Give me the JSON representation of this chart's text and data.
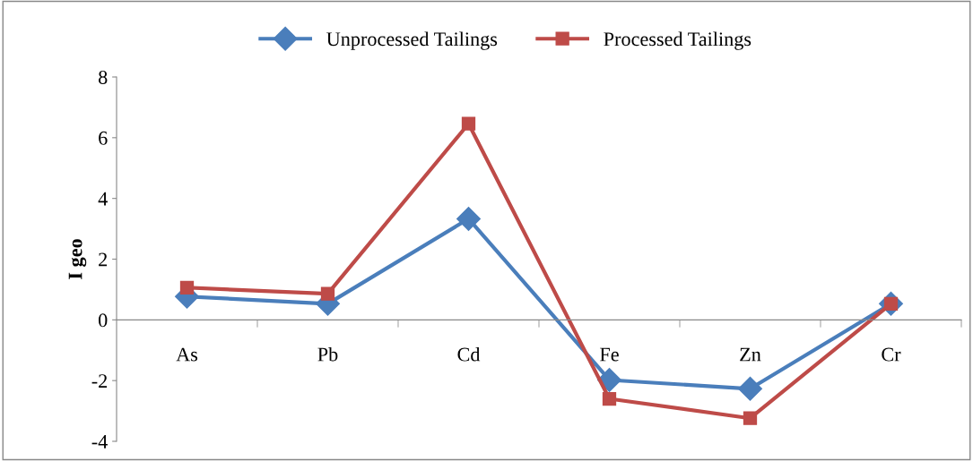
{
  "chart_data": {
    "type": "line",
    "ylabel": "I geo",
    "categories": [
      "As",
      "Pb",
      "Cd",
      "Fe",
      "Zn",
      "Cr"
    ],
    "series": [
      {
        "name": "Unprocessed Tailings",
        "color": "#4a7ebb",
        "marker": "diamond",
        "values": [
          0.77,
          0.53,
          3.33,
          -1.98,
          -2.27,
          0.53
        ]
      },
      {
        "name": "Processed Tailings",
        "color": "#be4b48",
        "marker": "square",
        "values": [
          1.06,
          0.86,
          6.46,
          -2.6,
          -3.24,
          0.53
        ]
      }
    ],
    "ylim": [
      -4,
      8
    ],
    "yticks": [
      -4,
      -2,
      0,
      2,
      4,
      6,
      8
    ],
    "grid": false,
    "legend": "top",
    "line_style": "solid"
  }
}
